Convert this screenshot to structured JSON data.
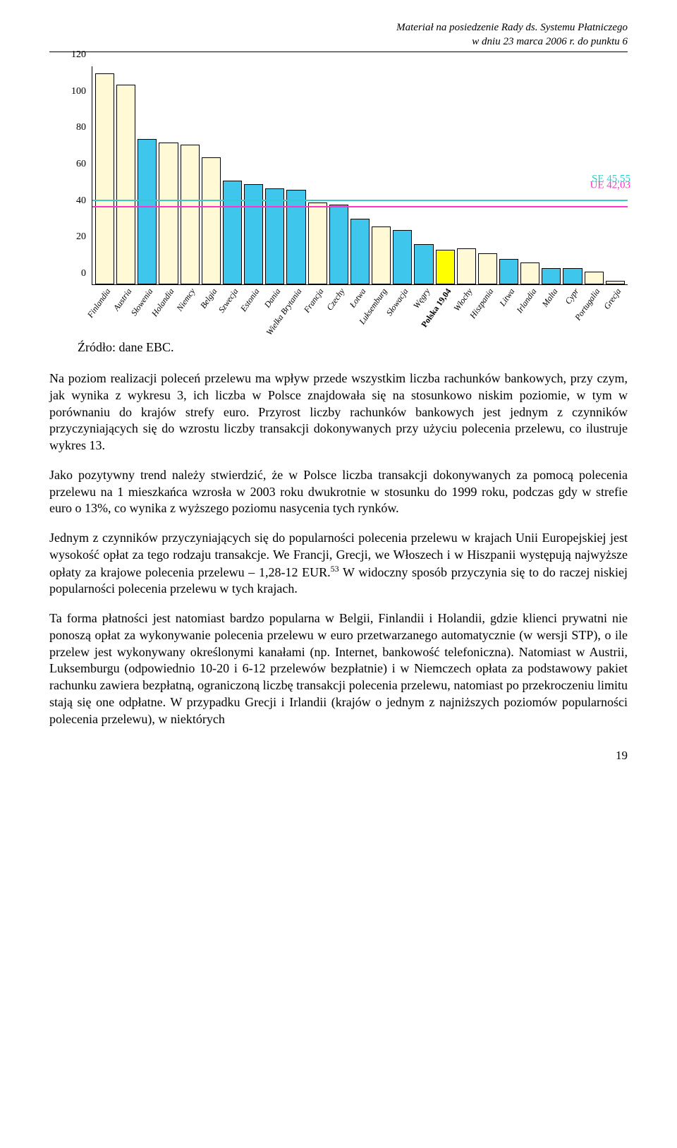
{
  "header": {
    "line1": "Materiał na posiedzenie Rady ds. Systemu Płatniczego",
    "line2": "w dniu 23 marca  2006 r. do punktu 6"
  },
  "chart": {
    "type": "bar",
    "ylim": [
      0,
      120
    ],
    "yticks": [
      0,
      20,
      40,
      60,
      80,
      100,
      120
    ],
    "bar_border": "#000000",
    "categories": [
      {
        "label": "Finlandia",
        "value": 116,
        "color": "#fff9d6"
      },
      {
        "label": "Austria",
        "value": 110,
        "color": "#fff9d6"
      },
      {
        "label": "Słowenia",
        "value": 80,
        "color": "#3fc6ed"
      },
      {
        "label": "Holandia",
        "value": 78,
        "color": "#fff9d6"
      },
      {
        "label": "Niemcy",
        "value": 77,
        "color": "#fff9d6"
      },
      {
        "label": "Belgia",
        "value": 70,
        "color": "#fff9d6"
      },
      {
        "label": "Szwecja",
        "value": 57,
        "color": "#3fc6ed"
      },
      {
        "label": "Estonia",
        "value": 55,
        "color": "#3fc6ed"
      },
      {
        "label": "Dania",
        "value": 53,
        "color": "#3fc6ed"
      },
      {
        "label": "Wielka Brytania",
        "value": 52,
        "color": "#3fc6ed"
      },
      {
        "label": "Francja",
        "value": 45,
        "color": "#fff9d6"
      },
      {
        "label": "Czechy",
        "value": 44,
        "color": "#3fc6ed"
      },
      {
        "label": "Łotwa",
        "value": 36,
        "color": "#3fc6ed"
      },
      {
        "label": "Luksemburg",
        "value": 32,
        "color": "#fff9d6"
      },
      {
        "label": "Słowacja",
        "value": 30,
        "color": "#3fc6ed"
      },
      {
        "label": "Węgry",
        "value": 22,
        "color": "#3fc6ed"
      },
      {
        "label": "Polska 19,04",
        "value": 19,
        "color": "#ffff00",
        "bold": true
      },
      {
        "label": "Włochy",
        "value": 20,
        "color": "#fff9d6"
      },
      {
        "label": "Hiszpania",
        "value": 17,
        "color": "#fff9d6"
      },
      {
        "label": "Litwa",
        "value": 14,
        "color": "#3fc6ed"
      },
      {
        "label": "Irlandia",
        "value": 12,
        "color": "#fff9d6"
      },
      {
        "label": "Malta",
        "value": 9,
        "color": "#3fc6ed"
      },
      {
        "label": "Cypr",
        "value": 9,
        "color": "#3fc6ed"
      },
      {
        "label": "Portugalia",
        "value": 7,
        "color": "#fff9d6"
      },
      {
        "label": "Grecja",
        "value": 2,
        "color": "#fff9d6"
      }
    ],
    "reference_lines": [
      {
        "label": "SE 45,55",
        "value": 45.55,
        "color": "#33cccc"
      },
      {
        "label": "UE 42,03",
        "value": 42.03,
        "color": "#ff33cc"
      }
    ],
    "tick_fontsize": 14,
    "label_fontsize": 12
  },
  "source_text": "Źródło: dane EBC.",
  "paragraphs": {
    "p1": "Na poziom realizacji poleceń przelewu ma wpływ przede wszystkim liczba rachunków bankowych, przy czym, jak wynika z wykresu 3, ich liczba w Polsce znajdowała się na stosunkowo niskim poziomie, w tym w porównaniu do krajów strefy euro. Przyrost liczby rachunków bankowych jest jednym z czynników przyczyniających się do wzrostu liczby transakcji dokonywanych przy użyciu polecenia przelewu, co ilustruje wykres 13.",
    "p2": "Jako pozytywny trend należy stwierdzić, że w Polsce liczba transakcji dokonywanych za pomocą polecenia przelewu na 1 mieszkańca wzrosła w 2003 roku dwukrotnie w stosunku do 1999 roku, podczas gdy w strefie euro o 13%, co wynika z wyższego poziomu nasycenia tych rynków.",
    "p3a": "Jednym z czynników przyczyniających się do popularności polecenia przelewu w krajach Unii Europejskiej jest wysokość opłat za tego rodzaju transakcje. We Francji, Grecji, we Włoszech i w Hiszpanii występują najwyższe opłaty za krajowe polecenia przelewu – 1,28-12 EUR.",
    "p3_sup": "53",
    "p3b": " W widoczny sposób przyczynia się to do raczej niskiej popularności polecenia przelewu w tych krajach.",
    "p4": "Ta forma płatności jest natomiast bardzo popularna w Belgii, Finlandii i Holandii, gdzie klienci prywatni nie ponoszą opłat za wykonywanie polecenia przelewu w euro przetwarzanego automatycznie (w wersji STP), o ile przelew jest wykonywany określonymi kanałami (np. Internet, bankowość telefoniczna). Natomiast w Austrii, Luksemburgu (odpowiednio 10-20 i 6-12 przelewów bezpłatnie) i w Niemczech opłata za podstawowy pakiet rachunku zawiera bezpłatną, ograniczoną liczbę transakcji polecenia przelewu, natomiast po przekroczeniu limitu stają się one odpłatne. W przypadku Grecji i Irlandii (krajów o jednym z najniższych poziomów popularności polecenia przelewu), w niektórych"
  },
  "page_number": "19"
}
